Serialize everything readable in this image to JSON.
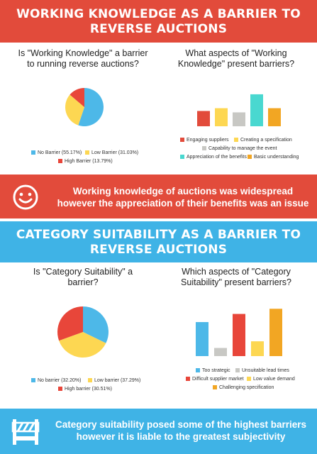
{
  "section1": {
    "title_line1": "Working Knowledge as a Barrier to",
    "title_line2": "Reverse Auctions",
    "left_question_line1": "Is \"Working Knowledge\" a barrier",
    "left_question_line2": "to running reverse auctions?",
    "right_question_line1": "What aspects of \"Working",
    "right_question_line2": "Knowledge\" present barriers?",
    "callout_line1": "Working knowledge of auctions was widespread",
    "callout_line2": "however the appreciation of their benefits was an issue",
    "callout_icon": "smiley-face-icon"
  },
  "section2": {
    "title_line1": "Category Suitability as a Barrier to",
    "title_line2": "Reverse Auctions",
    "left_question_line1": "Is \"Category Suitability\" a",
    "left_question_line2": "barrier?",
    "right_question_line1": "Which aspects of \"Category",
    "right_question_line2": "Suitability\" present barriers?",
    "callout_line1": "Category suitability posed some of the highest barriers",
    "callout_line2": "however it is liable to the greatest subjectivity",
    "callout_icon": "road-barrier-icon"
  },
  "colors": {
    "red_band": "#e24b3b",
    "blue_band": "#3fb3e6"
  },
  "chart_data": [
    {
      "type": "pie",
      "categories": [
        "No Barrier",
        "Low Barrier",
        "High Barrier"
      ],
      "legend_labels": [
        "No Barrier (55.17%)",
        "Low Barrier (31.03%)",
        "High Barrier (13.79%)"
      ],
      "values": [
        55.17,
        31.03,
        13.79
      ],
      "colors": [
        "#4db8e8",
        "#fdd752",
        "#e8463a"
      ],
      "legend": "bottom"
    },
    {
      "type": "bar",
      "categories": [
        "Engaging suppliers",
        "Creating a specification",
        "Capability to manage the event",
        "Appreciation of the benefits",
        "Basic understanding"
      ],
      "values": [
        22,
        26,
        20,
        46,
        26
      ],
      "colors": [
        "#e24b3b",
        "#fdd752",
        "#c8c8c4",
        "#49d8d0",
        "#f2a623"
      ],
      "ylim": [
        0,
        50
      ],
      "legend": "bottom"
    },
    {
      "type": "pie",
      "categories": [
        "No barrier",
        "Low barrier",
        "High barrier"
      ],
      "legend_labels": [
        "No barrier (32.20%)",
        "Low barrier (37.29%)",
        "High barrier (30.51%)"
      ],
      "values": [
        32.2,
        37.29,
        30.51
      ],
      "colors": [
        "#4db8e8",
        "#fdd752",
        "#e8463a"
      ],
      "legend": "bottom"
    },
    {
      "type": "bar",
      "categories": [
        "Too strategic",
        "Unsuitable lead times",
        "Difficult supplier market",
        "Low value demand",
        "Challenging specification"
      ],
      "values": [
        46,
        11,
        57,
        20,
        64
      ],
      "colors": [
        "#4db8e8",
        "#c8c8c4",
        "#e8463a",
        "#fdd752",
        "#f2a623"
      ],
      "ylim": [
        0,
        70
      ],
      "legend": "bottom"
    }
  ]
}
